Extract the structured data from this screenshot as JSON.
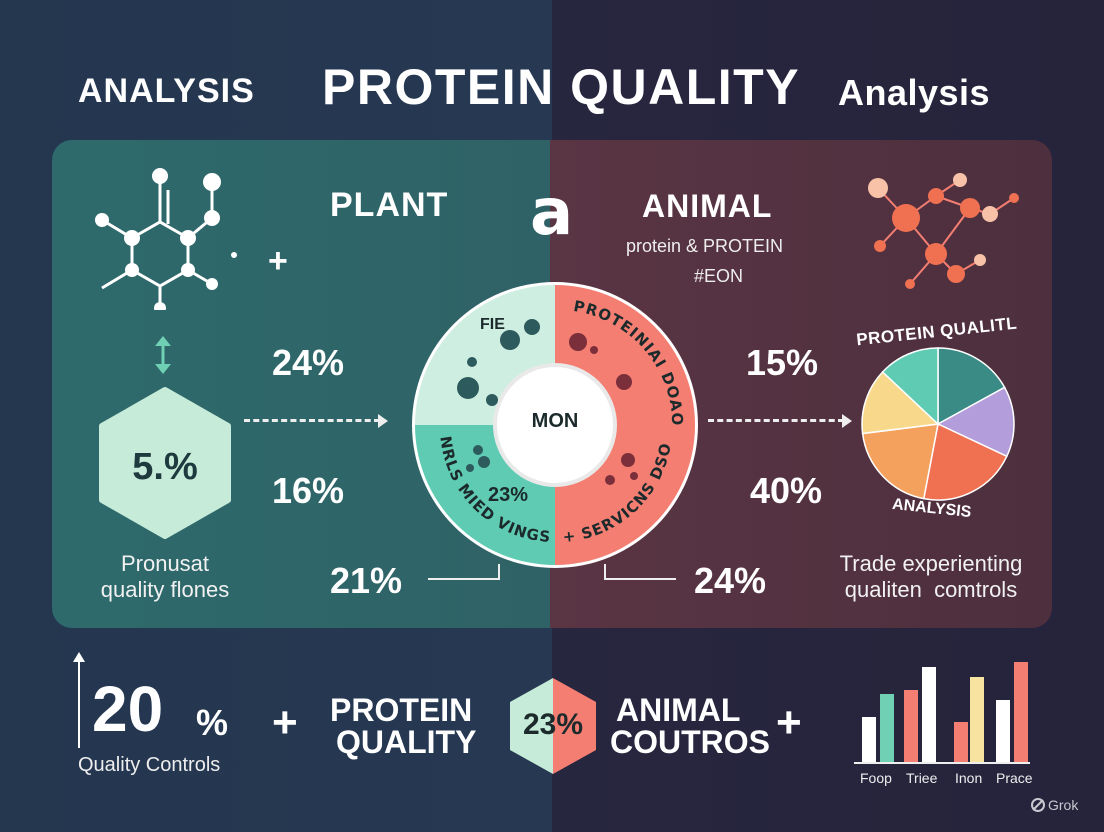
{
  "header": {
    "left": "ANALYSIS",
    "title": "PROTEIN QUALITY",
    "right": "Analysis"
  },
  "plant": {
    "title": "PLANT",
    "plus": "+",
    "pct_top": "24%",
    "pct_mid": "16%",
    "pct_bottom": "21%",
    "hex_value": "5.%",
    "note_line1": "Pronusat",
    "note_line2": "quality flones"
  },
  "center": {
    "glyph": "a",
    "top_left_text": "FIE",
    "top_right_text": "PROTEINIAI DOAO",
    "bottom_left_text": "NRLS MIED VINGS",
    "bottom_right_text": "+ SERVICNS DSO",
    "inner": "MON",
    "inner_pct": "23%"
  },
  "animal": {
    "title": "ANIMAL",
    "subtitle1": "protein & PROTEIN",
    "subtitle2": "#EON",
    "pct_top": "15%",
    "pct_mid": "40%",
    "pct_bottom": "24%",
    "pie_title": "PROTEIN QUALITL",
    "pie_caption": "ANALYSIS",
    "note_line1": "Trade experienting",
    "note_line2": "qualiten  comtrols"
  },
  "footer": {
    "big_value": "20",
    "big_unit": "%",
    "big_caption": "Quality Controls",
    "plus": "+",
    "protein_line1": "PROTEIN",
    "protein_line2": "QUALITY",
    "hex_value": "23%",
    "animal_line1": "ANIMAL",
    "animal_line2": "COUTROS",
    "bar_labels": [
      "Foop",
      "Triee",
      "Inon",
      "Prace"
    ],
    "bars": [
      {
        "value": 0.45,
        "color": "#ffffff"
      },
      {
        "value": 0.68,
        "color": "#6fd0b3"
      },
      {
        "value": 0.72,
        "color": "#f47e72"
      },
      {
        "value": 0.95,
        "color": "#ffffff"
      },
      {
        "value": 0.4,
        "color": "#f47e72"
      },
      {
        "value": 0.85,
        "color": "#f8e3a0"
      },
      {
        "value": 0.62,
        "color": "#ffffff"
      },
      {
        "value": 1.0,
        "color": "#f47e72"
      }
    ]
  },
  "pie_slices": [
    {
      "value": 0.17,
      "color": "#3a8a86"
    },
    {
      "value": 0.15,
      "color": "#b39ddb"
    },
    {
      "value": 0.21,
      "color": "#f07052"
    },
    {
      "value": 0.2,
      "color": "#f4a15e"
    },
    {
      "value": 0.14,
      "color": "#f8d88a"
    },
    {
      "value": 0.13,
      "color": "#5fcbb3"
    }
  ],
  "watermark": "Grok"
}
